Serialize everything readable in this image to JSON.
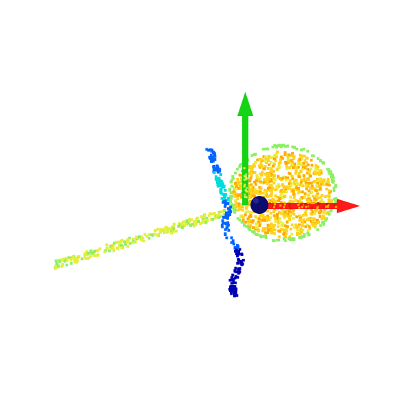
{
  "scene": {
    "background": "#ffffff",
    "axes": {
      "x": {
        "color": "#ff1a1a",
        "icon": "x-axis-arrow"
      },
      "y": {
        "color": "#14d414",
        "icon": "y-axis-arrow"
      }
    },
    "origin_marker": {
      "color": "#0c0c6e",
      "icon": "origin-sphere"
    },
    "colormap": [
      "#0000b4",
      "#0064ff",
      "#00dcdc",
      "#8cf064",
      "#e6ee3c",
      "#ffd21e",
      "#ffaa00"
    ]
  }
}
